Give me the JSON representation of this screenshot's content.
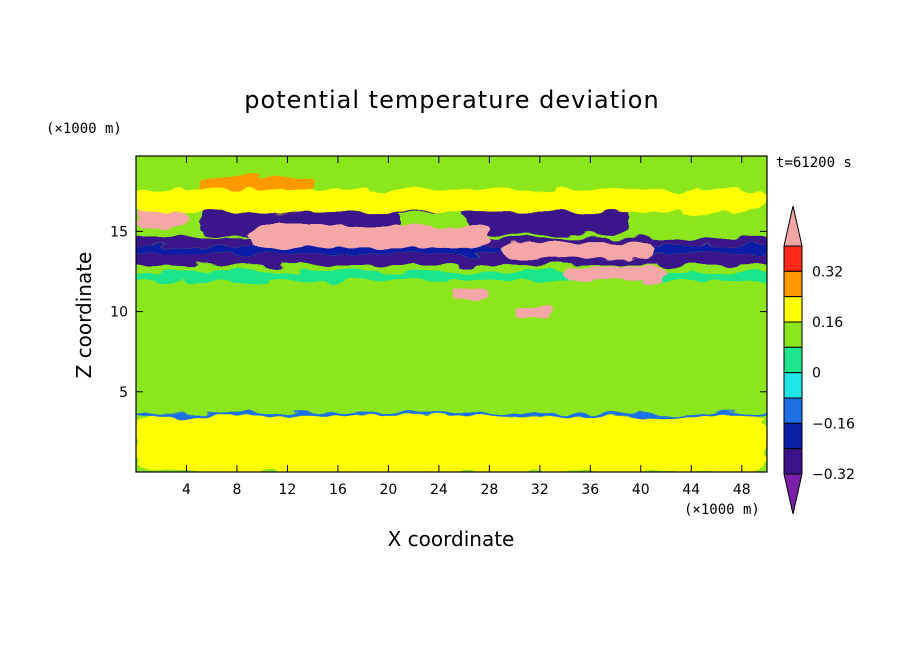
{
  "chart_data": {
    "type": "heatmap",
    "title": "potential temperature deviation",
    "xlabel": "X coordinate",
    "ylabel": "Z coordinate",
    "x_unit": "(×1000 m)",
    "y_unit": "(×1000 m)",
    "time_label": "t=61200 s",
    "xlim": [
      0,
      50
    ],
    "ylim": [
      0,
      19.7
    ],
    "x_ticks": [
      4,
      8,
      12,
      16,
      20,
      24,
      28,
      32,
      36,
      40,
      44,
      48
    ],
    "x_tick_labels": [
      "4",
      "8",
      "12",
      "16",
      "20",
      "24",
      "28",
      "32",
      "36",
      "40",
      "44",
      "48"
    ],
    "y_ticks": [
      5,
      10,
      15
    ],
    "y_tick_labels": [
      "5",
      "10",
      "15"
    ],
    "colorbar": {
      "levels": [
        -0.4,
        -0.32,
        -0.24,
        -0.16,
        -0.08,
        0,
        0.08,
        0.16,
        0.24,
        0.32,
        0.4
      ],
      "labeled_levels": [
        0.32,
        0.16,
        0,
        -0.16,
        -0.32
      ],
      "labels": [
        "0.32",
        "0.16",
        "0",
        "−0.16",
        "−0.32"
      ],
      "colors": [
        "#7a1fa8",
        "#3b128a",
        "#0a1fa6",
        "#1e6fe6",
        "#1ee6e6",
        "#1ee68c",
        "#8ce61e",
        "#ffff00",
        "#ff9900",
        "#ff2a1a",
        "#f5a6a6"
      ]
    },
    "features": [
      {
        "kind": "background",
        "value": 0
      },
      {
        "kind": "band",
        "z": [
          12.9,
          13.6
        ],
        "value": -0.34
      },
      {
        "kind": "band",
        "z": [
          13.6,
          14.1
        ],
        "value": -0.26
      },
      {
        "kind": "band",
        "z": [
          14.1,
          14.6
        ],
        "value": -0.38
      },
      {
        "kind": "band",
        "z": [
          11.9,
          12.5
        ],
        "value": -0.06
      },
      {
        "kind": "band",
        "z": [
          3.5,
          3.7
        ],
        "value": -0.24
      },
      {
        "kind": "patch",
        "x": [
          5,
          21
        ],
        "z": [
          14.7,
          16.4
        ],
        "value": -0.4
      },
      {
        "kind": "patch",
        "x": [
          26,
          39
        ],
        "z": [
          14.8,
          17.2
        ],
        "value": -0.4
      },
      {
        "kind": "patch",
        "x": [
          20,
          24
        ],
        "z": [
          16.1,
          17.4
        ],
        "value": -0.34
      },
      {
        "kind": "patch",
        "x": [
          9,
          28
        ],
        "z": [
          14.0,
          15.4
        ],
        "value": 0.42
      },
      {
        "kind": "patch",
        "x": [
          29,
          41
        ],
        "z": [
          13.3,
          14.3
        ],
        "value": 0.42
      },
      {
        "kind": "patch",
        "x": [
          34,
          42
        ],
        "z": [
          11.9,
          12.8
        ],
        "value": 0.42
      },
      {
        "kind": "patch",
        "x": [
          0,
          4
        ],
        "z": [
          15.2,
          16.6
        ],
        "value": 0.38
      },
      {
        "kind": "patch",
        "x": [
          5,
          14
        ],
        "z": [
          17.2,
          18.4
        ],
        "value": 0.2
      },
      {
        "kind": "patch",
        "x": [
          0,
          50
        ],
        "z": [
          16.2,
          17.6
        ],
        "value": 0.1
      },
      {
        "kind": "patch",
        "x": [
          0,
          50
        ],
        "z": [
          0,
          3.5
        ],
        "value": 0.08
      },
      {
        "kind": "patch",
        "x": [
          0,
          50
        ],
        "z": [
          5,
          10
        ],
        "value": 0.06
      },
      {
        "kind": "patch",
        "x": [
          25,
          28
        ],
        "z": [
          10.8,
          11.4
        ],
        "value": 0.42
      },
      {
        "kind": "patch",
        "x": [
          30,
          33
        ],
        "z": [
          9.6,
          10.3
        ],
        "value": 0.42
      }
    ]
  }
}
